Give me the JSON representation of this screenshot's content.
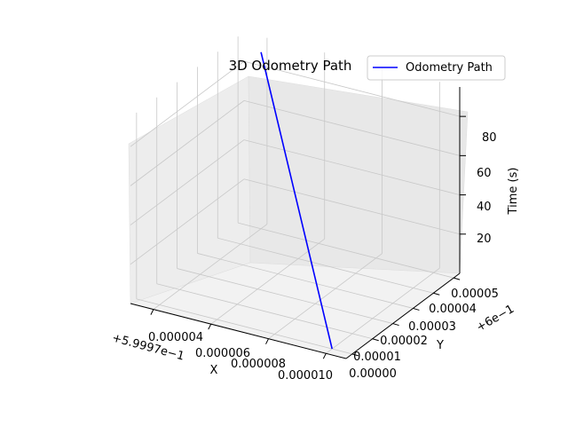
{
  "chart_data": {
    "type": "line",
    "projection": "3d",
    "title": "3D Odometry Path",
    "xlabel": "X",
    "ylabel": "Y",
    "zlabel": "Time (s)",
    "x_offset_label": "+5.9997e−1",
    "y_offset_label": "+6e−1",
    "x_ticks": [
      "0.000004",
      "0.000006",
      "0.000008",
      "0.000010"
    ],
    "y_ticks": [
      "0.00000",
      "0.00001",
      "0.00002",
      "0.00003",
      "0.00004",
      "0.00005"
    ],
    "z_ticks": [
      "20",
      "40",
      "60",
      "80"
    ],
    "grid": true,
    "legend_placement": "upper right",
    "series": [
      {
        "name": "Odometry Path",
        "color": "#0000ff",
        "points": [
          {
            "x": 1e-05,
            "y": 0.0,
            "t": 0
          },
          {
            "x": 4e-06,
            "y": 5e-05,
            "t": 90
          }
        ]
      }
    ]
  }
}
